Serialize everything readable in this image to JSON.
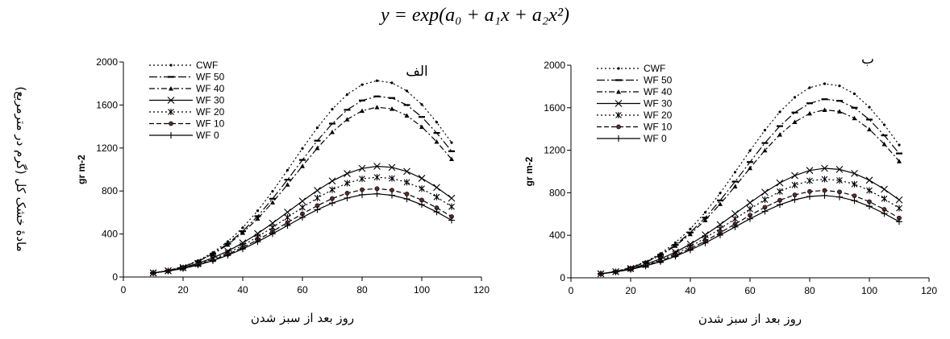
{
  "equation": "y = exp(a₀ + a₁x + a₂x²)",
  "shared_ylabel": "مادهٔ خشک کل (گرم در مترمربع)",
  "chart_data": [
    {
      "type": "line",
      "panel_label": "الف",
      "xlabel": "روز بعد از سبز شدن",
      "ylabel": "gr m-2",
      "xlim": [
        0,
        120
      ],
      "ylim": [
        0,
        2000
      ],
      "xticks": [
        0,
        20,
        40,
        60,
        80,
        100,
        120
      ],
      "yticks": [
        0,
        400,
        800,
        1200,
        1600,
        2000
      ],
      "grid": false,
      "legend_position": "top-left",
      "series": [
        {
          "name": "CWF",
          "x": [
            10,
            15,
            20,
            25,
            30,
            35,
            40,
            45,
            50,
            55,
            60,
            65,
            70,
            75,
            80,
            85,
            90,
            95,
            100,
            105,
            110
          ],
          "y": [
            36,
            60,
            97,
            152,
            228,
            330,
            459,
            616,
            797,
            994,
            1196,
            1389,
            1561,
            1698,
            1789,
            1826,
            1806,
            1731,
            1605,
            1440,
            1250
          ]
        },
        {
          "name": "WF 50",
          "x": [
            10,
            15,
            20,
            25,
            30,
            35,
            40,
            45,
            50,
            55,
            60,
            65,
            70,
            75,
            80,
            85,
            90,
            95,
            100,
            105,
            110
          ],
          "y": [
            37,
            60,
            96,
            147,
            217,
            310,
            426,
            566,
            728,
            905,
            1089,
            1268,
            1427,
            1555,
            1642,
            1680,
            1665,
            1600,
            1489,
            1340,
            1170
          ]
        },
        {
          "name": "WF 40",
          "x": [
            10,
            15,
            20,
            25,
            30,
            35,
            40,
            45,
            50,
            55,
            60,
            65,
            70,
            75,
            80,
            85,
            90,
            95,
            100,
            105,
            110
          ],
          "y": [
            37,
            60,
            95,
            145,
            213,
            301,
            411,
            543,
            694,
            860,
            1032,
            1199,
            1348,
            1466,
            1546,
            1580,
            1565,
            1502,
            1397,
            1258,
            1097
          ]
        },
        {
          "name": "WF 30",
          "x": [
            10,
            15,
            20,
            25,
            30,
            35,
            40,
            45,
            50,
            55,
            60,
            65,
            70,
            75,
            80,
            85,
            90,
            95,
            100,
            105,
            110
          ],
          "y": [
            38,
            58,
            88,
            127,
            178,
            241,
            317,
            404,
            501,
            603,
            706,
            805,
            893,
            962,
            1010,
            1030,
            1020,
            982,
            918,
            833,
            733
          ]
        },
        {
          "name": "WF 20",
          "x": [
            10,
            15,
            20,
            25,
            30,
            35,
            40,
            45,
            50,
            55,
            60,
            65,
            70,
            75,
            80,
            85,
            90,
            95,
            100,
            105,
            110
          ],
          "y": [
            38,
            57,
            84,
            120,
            167,
            225,
            294,
            374,
            462,
            554,
            647,
            735,
            812,
            873,
            913,
            928,
            917,
            881,
            822,
            744,
            654
          ]
        },
        {
          "name": "WF 10",
          "x": [
            10,
            15,
            20,
            25,
            30,
            35,
            40,
            45,
            50,
            55,
            60,
            65,
            70,
            75,
            80,
            85,
            90,
            95,
            100,
            105,
            110
          ],
          "y": [
            38,
            56,
            81,
            115,
            158,
            211,
            274,
            346,
            424,
            506,
            588,
            664,
            730,
            780,
            812,
            822,
            808,
            772,
            716,
            644,
            562
          ]
        },
        {
          "name": "WF 0",
          "x": [
            10,
            15,
            20,
            25,
            30,
            35,
            40,
            45,
            50,
            55,
            60,
            65,
            70,
            75,
            80,
            85,
            90,
            95,
            100,
            105,
            110
          ],
          "y": [
            38,
            55,
            79,
            111,
            152,
            202,
            261,
            328,
            402,
            479,
            555,
            626,
            688,
            735,
            765,
            774,
            760,
            726,
            673,
            605,
            528
          ]
        }
      ]
    },
    {
      "type": "line",
      "panel_label": "ب",
      "xlabel": "روز بعد از سبز شدن",
      "ylabel": "gr m-2",
      "xlim": [
        0,
        120
      ],
      "ylim": [
        0,
        2000
      ],
      "xticks": [
        0,
        20,
        40,
        60,
        80,
        100,
        120
      ],
      "yticks": [
        0,
        400,
        800,
        1200,
        1600,
        2000
      ],
      "grid": false,
      "legend_position": "top-left",
      "series": [
        {
          "name": "CWF",
          "x": [
            10,
            15,
            20,
            25,
            30,
            35,
            40,
            45,
            50,
            55,
            60,
            65,
            70,
            75,
            80,
            85,
            90,
            95,
            100,
            105,
            110
          ],
          "y": [
            36,
            60,
            97,
            152,
            228,
            330,
            459,
            616,
            797,
            994,
            1196,
            1389,
            1561,
            1698,
            1789,
            1826,
            1806,
            1731,
            1605,
            1440,
            1250
          ]
        },
        {
          "name": "WF 50",
          "x": [
            10,
            15,
            20,
            25,
            30,
            35,
            40,
            45,
            50,
            55,
            60,
            65,
            70,
            75,
            80,
            85,
            90,
            95,
            100,
            105,
            110
          ],
          "y": [
            37,
            60,
            96,
            147,
            217,
            310,
            426,
            566,
            728,
            905,
            1089,
            1268,
            1427,
            1555,
            1642,
            1680,
            1665,
            1600,
            1489,
            1340,
            1170
          ]
        },
        {
          "name": "WF 40",
          "x": [
            10,
            15,
            20,
            25,
            30,
            35,
            40,
            45,
            50,
            55,
            60,
            65,
            70,
            75,
            80,
            85,
            90,
            95,
            100,
            105,
            110
          ],
          "y": [
            37,
            60,
            95,
            145,
            213,
            301,
            411,
            543,
            694,
            860,
            1032,
            1199,
            1348,
            1466,
            1546,
            1580,
            1565,
            1502,
            1397,
            1258,
            1097
          ]
        },
        {
          "name": "WF 30",
          "x": [
            10,
            15,
            20,
            25,
            30,
            35,
            40,
            45,
            50,
            55,
            60,
            65,
            70,
            75,
            80,
            85,
            90,
            95,
            100,
            105,
            110
          ],
          "y": [
            38,
            58,
            88,
            127,
            178,
            241,
            317,
            404,
            501,
            603,
            706,
            805,
            893,
            962,
            1010,
            1030,
            1020,
            982,
            918,
            833,
            733
          ]
        },
        {
          "name": "WF 20",
          "x": [
            10,
            15,
            20,
            25,
            30,
            35,
            40,
            45,
            50,
            55,
            60,
            65,
            70,
            75,
            80,
            85,
            90,
            95,
            100,
            105,
            110
          ],
          "y": [
            38,
            57,
            84,
            120,
            167,
            225,
            294,
            374,
            462,
            554,
            647,
            735,
            812,
            873,
            913,
            928,
            917,
            881,
            822,
            744,
            654
          ]
        },
        {
          "name": "WF 10",
          "x": [
            10,
            15,
            20,
            25,
            30,
            35,
            40,
            45,
            50,
            55,
            60,
            65,
            70,
            75,
            80,
            85,
            90,
            95,
            100,
            105,
            110
          ],
          "y": [
            38,
            56,
            81,
            115,
            158,
            211,
            274,
            346,
            424,
            506,
            588,
            664,
            730,
            780,
            812,
            822,
            808,
            772,
            716,
            644,
            562
          ]
        },
        {
          "name": "WF 0",
          "x": [
            10,
            15,
            20,
            25,
            30,
            35,
            40,
            45,
            50,
            55,
            60,
            65,
            70,
            75,
            80,
            85,
            90,
            95,
            100,
            105,
            110
          ],
          "y": [
            38,
            55,
            79,
            111,
            152,
            202,
            261,
            328,
            402,
            479,
            555,
            626,
            688,
            735,
            765,
            774,
            760,
            726,
            673,
            605,
            528
          ]
        }
      ]
    }
  ]
}
